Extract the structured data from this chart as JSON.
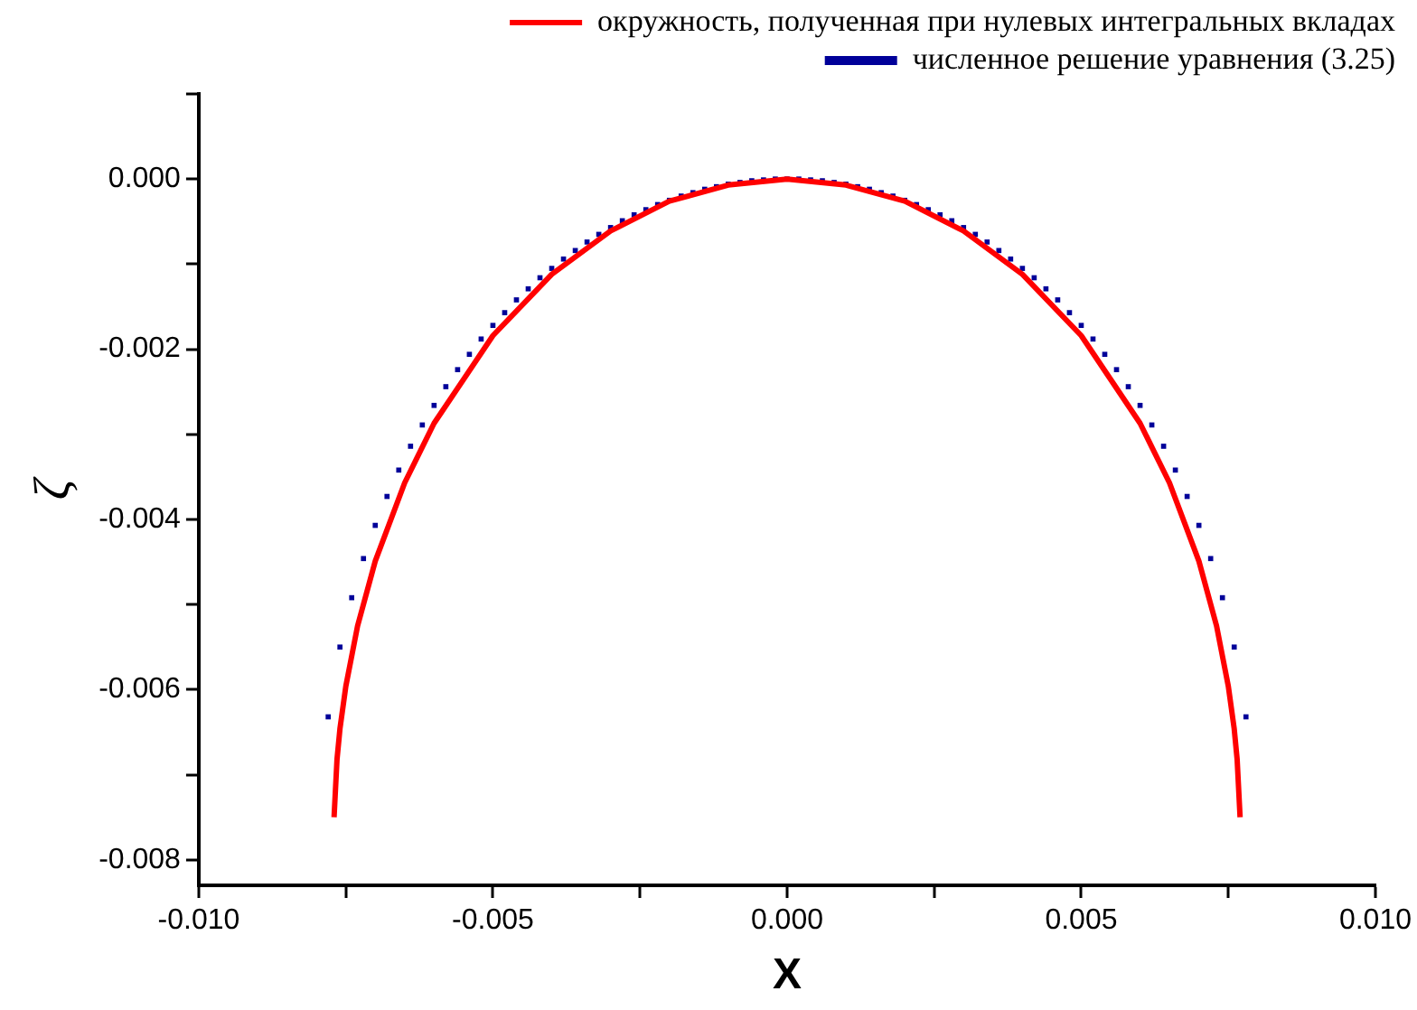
{
  "chart_data": {
    "type": "line",
    "xlabel": "X",
    "ylabel": "ζ",
    "xlim": [
      -0.01,
      0.01
    ],
    "ylim": [
      -0.0083,
      0.001
    ],
    "xticks": [
      {
        "value": -0.01,
        "label": "-0.010"
      },
      {
        "value": -0.0075,
        "label": null
      },
      {
        "value": -0.005,
        "label": "-0.005"
      },
      {
        "value": -0.0025,
        "label": null
      },
      {
        "value": 0,
        "label": "0.000"
      },
      {
        "value": 0.0025,
        "label": null
      },
      {
        "value": 0.005,
        "label": "0.005"
      },
      {
        "value": 0.0075,
        "label": null
      },
      {
        "value": 0.01,
        "label": "0.010"
      }
    ],
    "yticks": [
      {
        "value": -0.008,
        "label": "-0.008"
      },
      {
        "value": -0.007,
        "label": null
      },
      {
        "value": -0.006,
        "label": "-0.006"
      },
      {
        "value": -0.005,
        "label": null
      },
      {
        "value": -0.004,
        "label": "-0.004"
      },
      {
        "value": -0.003,
        "label": null
      },
      {
        "value": -0.002,
        "label": "-0.002"
      },
      {
        "value": -0.001,
        "label": null
      },
      {
        "value": 0,
        "label": "0.000"
      },
      {
        "value": 0.001,
        "label": null
      }
    ],
    "legend": "top right",
    "series": [
      {
        "name": "окружность, полученная при нулевых интегральных вкладах",
        "type": "line",
        "color": "#ff0000",
        "marker": "none",
        "line_style": "solid",
        "x": [
          -0.0077,
          -0.00765,
          -0.0076,
          -0.0075,
          -0.0073,
          -0.007,
          -0.0065,
          -0.006,
          -0.005,
          -0.004,
          -0.003,
          -0.002,
          -0.001,
          0,
          0.001,
          0.002,
          0.003,
          0.004,
          0.005,
          0.006,
          0.0065,
          0.007,
          0.0073,
          0.0075,
          0.0076,
          0.00765,
          0.0077
        ],
        "values": [
          -0.0075,
          -0.00682,
          -0.00646,
          -0.00596,
          -0.00525,
          -0.00449,
          -0.00357,
          -0.00287,
          -0.00184,
          -0.00112,
          -0.00061,
          -0.00026,
          -7e-05,
          0,
          -7e-05,
          -0.00026,
          -0.00061,
          -0.00112,
          -0.00184,
          -0.00287,
          -0.00357,
          -0.00449,
          -0.00525,
          -0.00596,
          -0.00646,
          -0.00682,
          -0.0075
        ]
      },
      {
        "name": "численное решение уравнения (3.25)",
        "type": "scatter",
        "color": "#000099",
        "marker": "square",
        "x": [
          -0.0078,
          -0.0076,
          -0.0074,
          -0.0072,
          -0.007,
          -0.0068,
          -0.0066,
          -0.0064,
          -0.0062,
          -0.006,
          -0.0058,
          -0.0056,
          -0.0054,
          -0.0052,
          -0.005,
          -0.0048,
          -0.0046,
          -0.0044,
          -0.0042,
          -0.004,
          -0.0038,
          -0.0036,
          -0.0034,
          -0.0032,
          -0.003,
          -0.0028,
          -0.0026,
          -0.0024,
          -0.0022,
          -0.002,
          -0.0018,
          -0.0016,
          -0.0014,
          -0.0012,
          -0.001,
          -0.0008,
          -0.0006,
          -0.0004,
          -0.0002,
          0,
          0.0002,
          0.0004,
          0.0006,
          0.0008,
          0.001,
          0.0012,
          0.0014,
          0.0016,
          0.0018,
          0.002,
          0.0022,
          0.0024,
          0.0026,
          0.0028,
          0.003,
          0.0032,
          0.0034,
          0.0036,
          0.0038,
          0.004,
          0.0042,
          0.0044,
          0.0046,
          0.0048,
          0.005,
          0.0052,
          0.0054,
          0.0056,
          0.0058,
          0.006,
          0.0062,
          0.0064,
          0.0066,
          0.0068,
          0.007,
          0.0072,
          0.0074,
          0.0076,
          0.0078
        ],
        "values": [
          -0.00632,
          -0.0055,
          -0.00492,
          -0.00446,
          -0.00407,
          -0.00373,
          -0.00342,
          -0.00314,
          -0.00289,
          -0.00266,
          -0.00244,
          -0.00224,
          -0.00206,
          -0.00188,
          -0.00172,
          -0.00157,
          -0.00142,
          -0.00129,
          -0.00116,
          -0.00105,
          -0.00094,
          -0.00084,
          -0.00074,
          -0.00065,
          -0.00057,
          -0.00049,
          -0.00042,
          -0.00036,
          -0.0003,
          -0.00025,
          -0.0002,
          -0.00016,
          -0.00012,
          -9e-05,
          -6e-05,
          -4e-05,
          -2e-05,
          -1e-05,
          0,
          0,
          0,
          -1e-05,
          -2e-05,
          -4e-05,
          -6e-05,
          -9e-05,
          -0.00012,
          -0.00016,
          -0.0002,
          -0.00025,
          -0.0003,
          -0.00036,
          -0.00042,
          -0.00049,
          -0.00057,
          -0.00065,
          -0.00074,
          -0.00084,
          -0.00094,
          -0.00105,
          -0.00116,
          -0.00129,
          -0.00142,
          -0.00157,
          -0.00172,
          -0.00188,
          -0.00206,
          -0.00224,
          -0.00244,
          -0.00266,
          -0.00289,
          -0.00314,
          -0.00342,
          -0.00373,
          -0.00407,
          -0.00446,
          -0.00492,
          -0.0055,
          -0.00632
        ]
      }
    ]
  }
}
